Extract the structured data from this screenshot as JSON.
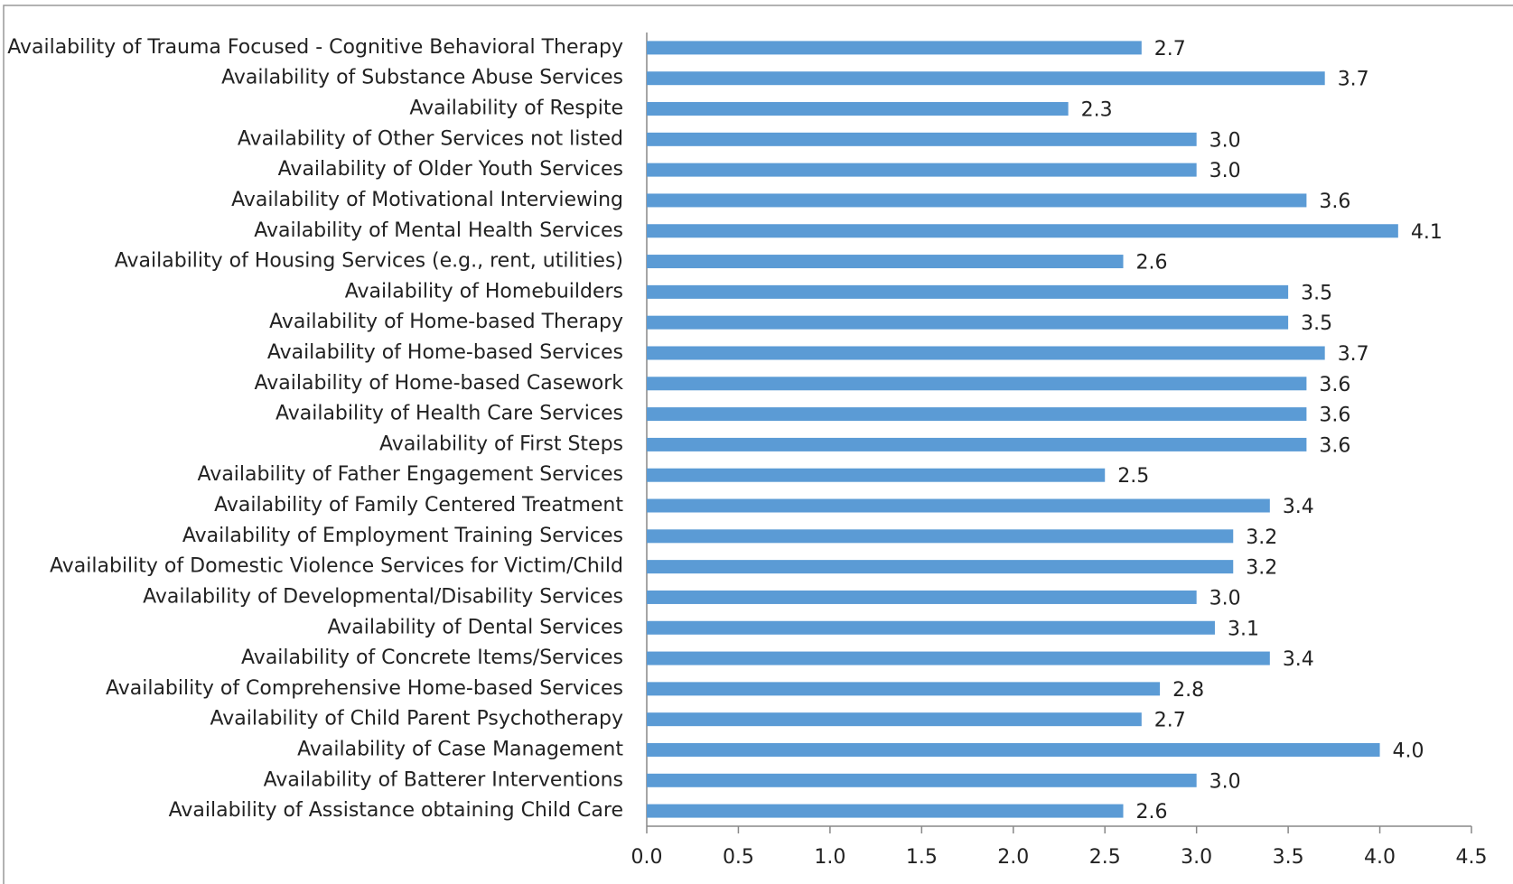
{
  "chart_data": {
    "type": "bar",
    "orientation": "horizontal",
    "color": "#5b9bd5",
    "categories": [
      "Availability of Trauma Focused - Cognitive Behavioral Therapy",
      "Availability of Substance Abuse Services",
      "Availability of Respite",
      "Availability of Other Services not listed",
      "Availability of Older Youth Services",
      "Availability of Motivational Interviewing",
      "Availability of Mental Health Services",
      "Availability of Housing Services (e.g., rent, utilities)",
      "Availability of Homebuilders",
      "Availability of Home-based Therapy",
      "Availability of Home-based Services",
      "Availability of Home-based Casework",
      "Availability of Health Care Services",
      "Availability of First Steps",
      "Availability of Father Engagement Services",
      "Availability of Family Centered Treatment",
      "Availability of Employment Training Services",
      "Availability of Domestic Violence Services for Victim/Child",
      "Availability of Developmental/Disability Services",
      "Availability of Dental Services",
      "Availability of Concrete Items/Services",
      "Availability of Comprehensive Home-based Services",
      "Availability of Child Parent Psychotherapy",
      "Availability of Case Management",
      "Availability of Batterer Interventions",
      "Availability of Assistance obtaining Child Care"
    ],
    "values": [
      2.7,
      3.7,
      2.3,
      3.0,
      3.0,
      3.6,
      4.1,
      2.6,
      3.5,
      3.5,
      3.7,
      3.6,
      3.6,
      3.6,
      2.5,
      3.4,
      3.2,
      3.2,
      3.0,
      3.1,
      3.4,
      2.8,
      2.7,
      4.0,
      3.0,
      2.6
    ],
    "value_labels": [
      "2.7",
      "3.7",
      "2.3",
      "3.0",
      "3.0",
      "3.6",
      "4.1",
      "2.6",
      "3.5",
      "3.5",
      "3.7",
      "3.6",
      "3.6",
      "3.6",
      "2.5",
      "3.4",
      "3.2",
      "3.2",
      "3.0",
      "3.1",
      "3.4",
      "2.8",
      "2.7",
      "4.0",
      "3.0",
      "2.6"
    ],
    "xlim": [
      0,
      4.5
    ],
    "xticks": [
      {
        "value": 0,
        "label": "0.0"
      },
      0.5,
      {
        "value": 1,
        "label": "1.0"
      },
      1.5,
      {
        "value": 2,
        "label": "2.0"
      },
      2.5,
      {
        "value": 3,
        "label": "3.0"
      },
      3.5,
      {
        "value": 4,
        "label": "4.0"
      },
      4.5
    ]
  }
}
